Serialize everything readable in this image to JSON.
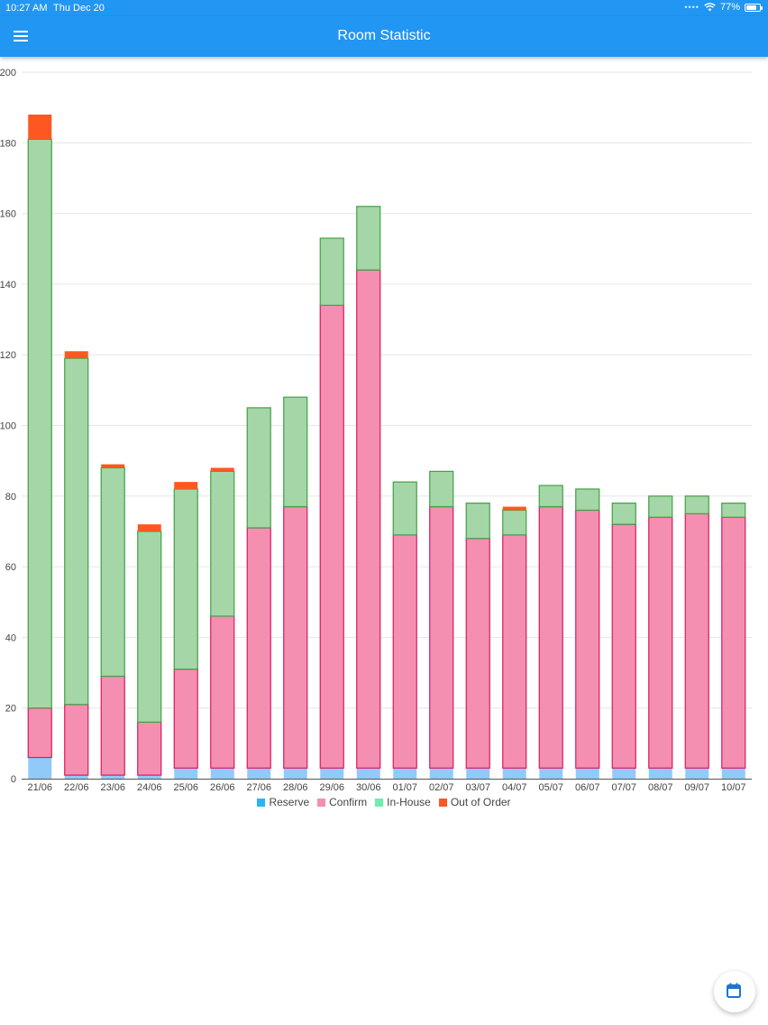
{
  "status_bar": {
    "time": "10:27 AM",
    "date": "Thu Dec 20",
    "battery": "77%",
    "battery_level": 0.77
  },
  "app_bar": {
    "title": "Room Statistic",
    "menu_icon": "menu-icon"
  },
  "fab": {
    "icon": "calendar-icon"
  },
  "colors": {
    "appbar": "#2196f3",
    "reserve_fill": "#90caf9",
    "reserve_legend": "#29b6f6",
    "confirm_fill": "#f48fb1",
    "confirm_stroke": "#d81b60",
    "inhouse_fill": "#a5d6a7",
    "inhouse_stroke": "#43a047",
    "inhouse_legend": "#69f0ae",
    "out_of_order_fill": "#ff5722"
  },
  "chart_data": {
    "type": "bar",
    "stacked": true,
    "categories": [
      "21/06",
      "22/06",
      "23/06",
      "24/06",
      "25/06",
      "26/06",
      "27/06",
      "28/06",
      "29/06",
      "30/06",
      "01/07",
      "02/07",
      "03/07",
      "04/07",
      "05/07",
      "06/07",
      "07/07",
      "08/07",
      "09/07",
      "10/07"
    ],
    "ylim": [
      0,
      200
    ],
    "yticks": [
      0,
      20,
      40,
      60,
      80,
      100,
      120,
      140,
      160,
      180,
      200
    ],
    "grid": true,
    "legend_position": "bottom",
    "series": [
      {
        "name": "Reserve",
        "values": [
          6,
          1,
          1,
          1,
          3,
          3,
          3,
          3,
          3,
          3,
          3,
          3,
          3,
          3,
          3,
          3,
          3,
          3,
          3,
          3
        ]
      },
      {
        "name": "Confirm",
        "values": [
          14,
          20,
          28,
          15,
          28,
          43,
          68,
          74,
          131,
          141,
          66,
          74,
          65,
          66,
          74,
          73,
          69,
          71,
          72,
          71
        ]
      },
      {
        "name": "In-House",
        "values": [
          161,
          98,
          59,
          54,
          51,
          41,
          34,
          31,
          19,
          18,
          15,
          10,
          10,
          7,
          6,
          6,
          6,
          6,
          5,
          4
        ]
      },
      {
        "name": "Out of Order",
        "values": [
          7,
          2,
          1,
          2,
          2,
          1,
          0,
          0,
          0,
          0,
          0,
          0,
          0,
          1,
          0,
          0,
          0,
          0,
          0,
          0
        ]
      }
    ]
  }
}
